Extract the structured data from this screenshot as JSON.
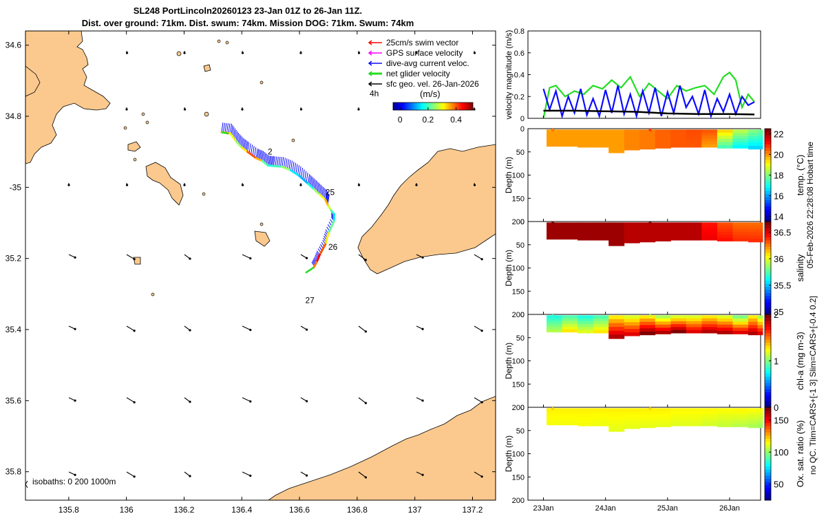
{
  "title_line1": "SL248 PortLincoln20260123 23-Jan 01Z to 26-Jan 11Z.",
  "title_line2": "Dist. over ground: 71km. Dist. swum: 74km. Mission DOG: 71km. Swum: 74km",
  "colors": {
    "land": "#fbc98e",
    "track_mid": "#2266cc",
    "glider_vec": "#0a0aff",
    "net_vel": "#22dd22",
    "sfc_vel": "#000000",
    "swim_vec": "#ff0000",
    "gps_vel": "#ff00ff"
  },
  "chart_data": [
    {
      "type": "scatter",
      "name": "map",
      "xlim": [
        135.65,
        137.28
      ],
      "ylim": [
        -35.88,
        -34.56
      ],
      "xticks": [
        135.8,
        136,
        136.2,
        136.4,
        136.6,
        136.8,
        137,
        137.2
      ],
      "xtick_labels": [
        "135.8",
        "136",
        "136.2",
        "136.4",
        "136.6",
        "136.8",
        "137",
        "137.2"
      ],
      "yticks": [
        -34.6,
        -34.8,
        -35,
        -35.2,
        -35.4,
        -35.6,
        -35.8
      ],
      "ytick_labels": [
        "34.6",
        "34.8",
        "-35",
        "35.2",
        "35.4",
        "35.6",
        "35.8"
      ],
      "legend": [
        {
          "label": "25cm/s swim vector",
          "color": "#ff0000"
        },
        {
          "label": "GPS surface velocity",
          "color": "#ff00ff"
        },
        {
          "label": "dive-avg current veloc.",
          "color": "#0a0aff"
        },
        {
          "label": "net glider velocity",
          "color": "#22dd22"
        },
        {
          "label": "sfc geo. vel. 26-Jan-2026",
          "color": "#000000"
        }
      ],
      "vector_scale_label": "4h",
      "colorbar": {
        "label": "(m/s)",
        "ticks": [
          0,
          0.2,
          0.4
        ],
        "tick_labels": [
          "0",
          "0.2",
          "0.4"
        ],
        "range": [
          -0.05,
          0.52
        ]
      },
      "isobath_label": "isobaths: 0   200   1000m",
      "day_labels": [
        {
          "text": "2",
          "lon": 136.49,
          "lat": -34.907
        },
        {
          "text": "25",
          "lon": 136.69,
          "lat": -35.022
        },
        {
          "text": "26",
          "lon": 136.7,
          "lat": -35.175
        },
        {
          "text": "27",
          "lon": 136.62,
          "lat": -35.325
        }
      ],
      "track": {
        "lon": [
          136.33,
          136.36,
          136.38,
          136.4,
          136.42,
          136.45,
          136.47,
          136.49,
          136.51,
          136.54,
          136.57,
          136.6,
          136.63,
          136.65,
          136.67,
          136.69,
          136.7,
          136.71,
          136.72,
          136.72,
          136.7,
          136.69,
          136.67,
          136.66,
          136.65
        ],
        "lat": [
          -34.845,
          -34.848,
          -34.87,
          -34.888,
          -34.9,
          -34.918,
          -34.925,
          -34.938,
          -34.94,
          -34.942,
          -34.952,
          -34.968,
          -34.99,
          -35.005,
          -35.02,
          -35.035,
          -35.052,
          -35.065,
          -35.075,
          -35.095,
          -35.13,
          -35.16,
          -35.19,
          -35.21,
          -35.225
        ],
        "speed": [
          0.35,
          0.3,
          0.25,
          0.32,
          0.4,
          0.35,
          0.22,
          0.18,
          0.2,
          0.25,
          0.15,
          0.12,
          0.18,
          0.25,
          0.3,
          0.35,
          0.28,
          0.2,
          0.15,
          0.22,
          0.32,
          0.4,
          0.45,
          0.38,
          0.2
        ]
      }
    },
    {
      "type": "line",
      "name": "velocity",
      "ylabel": "velocity magnitude (m/s)",
      "ylim": [
        0,
        0.8
      ],
      "yticks": [
        0,
        0.2,
        0.4,
        0.6,
        0.8
      ],
      "ytick_labels": [
        "0",
        "0.2",
        "0.4",
        "0.6",
        "0.8"
      ],
      "xlim": [
        22.75,
        26.5
      ],
      "series": [
        {
          "name": "net glider velocity",
          "color": "#22dd22",
          "x": [
            23.0,
            23.1,
            23.2,
            23.35,
            23.5,
            23.65,
            23.8,
            23.95,
            24.1,
            24.25,
            24.4,
            24.55,
            24.7,
            24.85,
            25.0,
            25.15,
            25.3,
            25.45,
            25.6,
            25.75,
            25.9,
            26.0,
            26.1,
            26.2,
            26.3,
            26.4
          ],
          "y": [
            0.0,
            0.28,
            0.3,
            0.2,
            0.25,
            0.22,
            0.3,
            0.27,
            0.35,
            0.28,
            0.38,
            0.2,
            0.32,
            0.25,
            0.18,
            0.3,
            0.25,
            0.28,
            0.3,
            0.22,
            0.38,
            0.42,
            0.35,
            0.1,
            0.22,
            0.15
          ]
        },
        {
          "name": "dive-avg current veloc.",
          "color": "#0a0aff",
          "x": [
            23.0,
            23.1,
            23.2,
            23.3,
            23.4,
            23.5,
            23.6,
            23.7,
            23.8,
            23.9,
            24.0,
            24.1,
            24.2,
            24.3,
            24.4,
            24.5,
            24.6,
            24.7,
            24.8,
            24.9,
            25.0,
            25.1,
            25.2,
            25.3,
            25.4,
            25.5,
            25.6,
            25.7,
            25.8,
            25.9,
            26.0,
            26.1,
            26.2,
            26.3,
            26.4
          ],
          "y": [
            0.27,
            0.08,
            0.25,
            0.02,
            0.2,
            0.05,
            0.27,
            0.03,
            0.18,
            0.02,
            0.26,
            0.05,
            0.3,
            0.04,
            0.22,
            0.02,
            0.25,
            0.05,
            0.28,
            0.02,
            0.24,
            0.05,
            0.3,
            0.1,
            0.2,
            0.04,
            0.26,
            0.02,
            0.18,
            0.06,
            0.22,
            0.04,
            0.2,
            0.12,
            0.15
          ]
        },
        {
          "name": "sfc geo. vel.",
          "color": "#000000",
          "x": [
            23.0,
            23.5,
            24.0,
            24.5,
            25.0,
            25.5,
            26.0,
            26.4
          ],
          "y": [
            0.07,
            0.07,
            0.065,
            0.06,
            0.045,
            0.04,
            0.04,
            0.035
          ]
        }
      ]
    },
    {
      "type": "heatmap",
      "name": "temperature",
      "ylabel": "Depth (m)",
      "colorbar_label": "temp. (°C)",
      "clim": [
        13.5,
        22.5
      ],
      "cticks": [
        14,
        16,
        18,
        20,
        22
      ],
      "ctick_labels": [
        "14",
        "16",
        "18",
        "20",
        "22"
      ],
      "ylim": [
        0,
        200
      ],
      "yticks": [
        0,
        50,
        100,
        150,
        200
      ],
      "ytick_labels": [
        "0",
        "50",
        "100",
        "150",
        "200"
      ],
      "x": [
        23.05,
        23.3,
        23.55,
        23.8,
        24.05,
        24.3,
        24.55,
        24.8,
        25.05,
        25.3,
        25.55,
        25.8,
        26.05,
        26.3,
        26.45
      ],
      "max_depth": [
        38,
        38,
        40,
        40,
        52,
        46,
        44,
        42,
        40,
        40,
        40,
        42,
        42,
        44,
        44
      ],
      "surface_value": [
        20.0,
        20.0,
        20.0,
        20.0,
        20.0,
        20.2,
        20.3,
        20.5,
        20.6,
        20.7,
        20.6,
        19.5,
        18.5,
        18.0,
        17.8
      ],
      "bottom_value": [
        20.0,
        20.0,
        20.0,
        20.0,
        20.0,
        20.2,
        20.3,
        20.5,
        20.6,
        20.6,
        20.0,
        17.5,
        16.8,
        16.5,
        16.5
      ]
    },
    {
      "type": "heatmap",
      "name": "salinity",
      "ylabel": "Depth (m)",
      "colorbar_label": "salinity",
      "clim": [
        34.95,
        36.7
      ],
      "cticks": [
        35,
        35.5,
        36,
        36.5
      ],
      "ctick_labels": [
        "35",
        "35.5",
        "36",
        "36.5"
      ],
      "ylim": [
        0,
        200
      ],
      "yticks": [
        0,
        50,
        100,
        150,
        200
      ],
      "ytick_labels": [
        "0",
        "50",
        "100",
        "150",
        "200"
      ],
      "x": [
        23.05,
        23.3,
        23.55,
        23.8,
        24.05,
        24.3,
        24.55,
        24.8,
        25.05,
        25.3,
        25.55,
        25.8,
        26.05,
        26.3,
        26.45
      ],
      "max_depth": [
        38,
        38,
        40,
        40,
        52,
        46,
        44,
        42,
        40,
        40,
        40,
        42,
        42,
        44,
        44
      ],
      "surface_value": [
        36.65,
        36.65,
        36.65,
        36.65,
        36.65,
        36.6,
        36.6,
        36.6,
        36.6,
        36.6,
        36.45,
        36.35,
        36.3,
        36.3,
        36.3
      ],
      "bottom_value": [
        36.65,
        36.65,
        36.65,
        36.65,
        36.65,
        36.6,
        36.6,
        36.6,
        36.6,
        36.6,
        36.5,
        36.45,
        36.4,
        36.4,
        36.4
      ]
    },
    {
      "type": "heatmap",
      "name": "chlorophyll",
      "ylabel": "Depth (m)",
      "colorbar_label": "chl-a (mg m-3)",
      "clim": [
        0,
        2
      ],
      "cticks": [
        0,
        1,
        2
      ],
      "ctick_labels": [
        "0",
        "1",
        "2"
      ],
      "ylim": [
        0,
        200
      ],
      "yticks": [
        0,
        50,
        100,
        150,
        200
      ],
      "ytick_labels": [
        "0",
        "50",
        "100",
        "150",
        "200"
      ],
      "x": [
        23.05,
        23.3,
        23.55,
        23.8,
        24.05,
        24.3,
        24.55,
        24.8,
        25.05,
        25.3,
        25.55,
        25.8,
        26.05,
        26.3,
        26.45
      ],
      "max_depth": [
        38,
        38,
        40,
        40,
        52,
        46,
        44,
        42,
        40,
        40,
        40,
        42,
        42,
        44,
        44
      ],
      "surface_value": [
        0.8,
        0.9,
        0.8,
        0.9,
        1.3,
        1.2,
        1.3,
        1.1,
        1.2,
        1.2,
        1.3,
        1.2,
        1.0,
        1.3,
        1.1
      ],
      "bottom_value": [
        1.1,
        1.3,
        1.2,
        1.3,
        1.9,
        1.8,
        2.0,
        1.9,
        2.0,
        1.8,
        1.9,
        1.9,
        1.8,
        1.9,
        1.8
      ]
    },
    {
      "type": "heatmap",
      "name": "oxygen",
      "ylabel": "Depth (m)",
      "colorbar_label": "Ox. sat. ratio (%)",
      "clim": [
        25,
        170
      ],
      "cticks": [
        50,
        100,
        150
      ],
      "ctick_labels": [
        "50",
        "100",
        "150"
      ],
      "ylim": [
        0,
        200
      ],
      "yticks": [
        0,
        50,
        100,
        150,
        200
      ],
      "ytick_labels": [
        "0",
        "50",
        "100",
        "150",
        "200"
      ],
      "x": [
        23.05,
        23.3,
        23.55,
        23.8,
        24.05,
        24.3,
        24.55,
        24.8,
        25.05,
        25.3,
        25.55,
        25.8,
        26.05,
        26.3,
        26.45
      ],
      "max_depth": [
        38,
        38,
        40,
        40,
        52,
        46,
        44,
        42,
        40,
        40,
        40,
        42,
        42,
        44,
        44
      ],
      "surface_value": [
        118,
        118,
        118,
        118,
        118,
        118,
        118,
        118,
        117,
        117,
        117,
        116,
        117,
        116,
        116
      ],
      "bottom_value": [
        115,
        115,
        115,
        114,
        113,
        113,
        113,
        113,
        112,
        112,
        110,
        108,
        106,
        104,
        102
      ]
    }
  ],
  "time_axis": {
    "ticks": [
      23,
      24,
      25,
      26
    ],
    "tick_labels": [
      "23Jan",
      "24Jan",
      "25Jan",
      "26Jan"
    ]
  },
  "side_labels": {
    "hobart_time": "05-Feb-2026 22:28:08 Hobart time",
    "qc_note": "no QC. Tlim=CARS+[-1 3] Slim=CARS+[-0.4 0.2]"
  }
}
